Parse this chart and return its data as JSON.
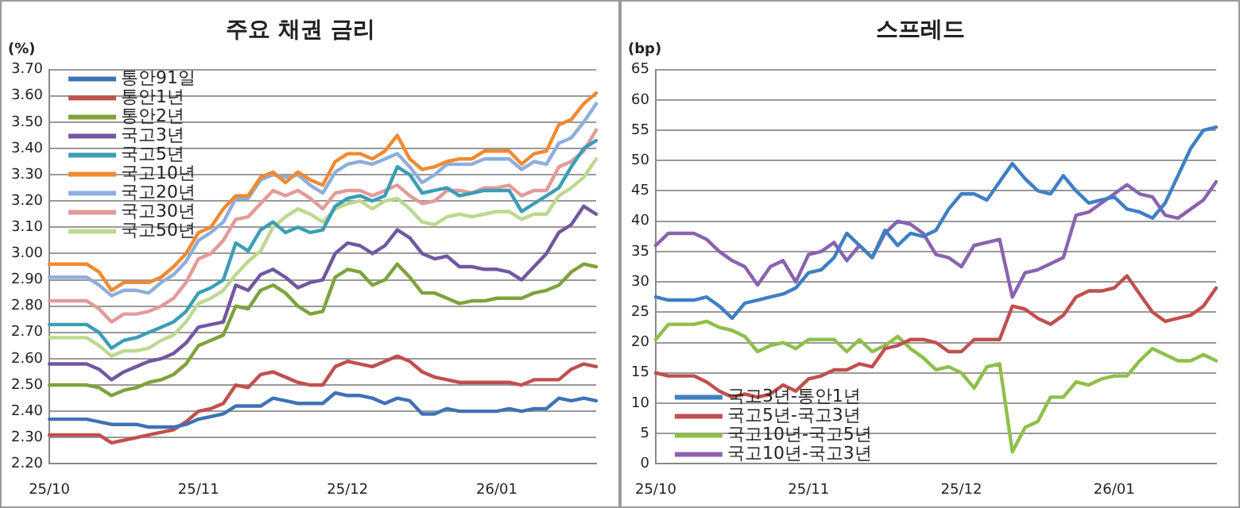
{
  "chart_data": [
    {
      "type": "line",
      "title": "주요 채권 금리",
      "ylabel": "(%)",
      "legend": "top left",
      "grid": "y",
      "marker": "none",
      "line_style": "solid",
      "categories": [
        "25/10",
        null,
        null,
        null,
        null,
        null,
        null,
        null,
        null,
        null,
        null,
        null,
        "25/11",
        null,
        null,
        null,
        null,
        null,
        null,
        null,
        null,
        null,
        null,
        null,
        "25/12",
        null,
        null,
        null,
        null,
        null,
        null,
        null,
        null,
        null,
        null,
        null,
        "26/01",
        null,
        null,
        null,
        null,
        null,
        null,
        null,
        null
      ],
      "ylim": [
        2.2,
        3.7
      ],
      "yticks": [
        {
          "value": 2.2,
          "label": "2.20"
        },
        {
          "value": 2.3,
          "label": "2.30"
        },
        {
          "value": 2.4,
          "label": "2.40"
        },
        {
          "value": 2.5,
          "label": "2.50"
        },
        {
          "value": 2.6,
          "label": "2.60"
        },
        {
          "value": 2.7,
          "label": "2.70"
        },
        {
          "value": 2.8,
          "label": "2.80"
        },
        {
          "value": 2.9,
          "label": "2.90"
        },
        {
          "value": 3.0,
          "label": "3.00"
        },
        {
          "value": 3.1,
          "label": "3.10"
        },
        {
          "value": 3.2,
          "label": "3.20"
        },
        {
          "value": 3.3,
          "label": "3.30"
        },
        {
          "value": 3.4,
          "label": "3.40"
        },
        {
          "value": 3.5,
          "label": "3.50"
        },
        {
          "value": 3.6,
          "label": "3.60"
        },
        {
          "value": 3.7,
          "label": "3.70"
        }
      ],
      "series": [
        {
          "name": "통안91일",
          "color": "#3f72b5",
          "values": [
            2.37,
            2.37,
            2.37,
            2.37,
            2.36,
            2.35,
            2.35,
            2.35,
            2.34,
            2.34,
            2.34,
            2.35,
            2.37,
            2.38,
            2.39,
            2.42,
            2.42,
            2.42,
            2.45,
            2.44,
            2.43,
            2.43,
            2.43,
            2.47,
            2.46,
            2.46,
            2.45,
            2.43,
            2.45,
            2.44,
            2.39,
            2.39,
            2.41,
            2.4,
            2.4,
            2.4,
            2.4,
            2.41,
            2.4,
            2.41,
            2.41,
            2.45,
            2.44,
            2.45,
            2.44
          ]
        },
        {
          "name": "통안1년",
          "color": "#c0504d",
          "values": [
            2.31,
            2.31,
            2.31,
            2.31,
            2.31,
            2.28,
            2.29,
            2.3,
            2.31,
            2.32,
            2.33,
            2.36,
            2.4,
            2.41,
            2.43,
            2.5,
            2.49,
            2.54,
            2.55,
            2.53,
            2.51,
            2.5,
            2.5,
            2.57,
            2.59,
            2.58,
            2.57,
            2.59,
            2.61,
            2.59,
            2.55,
            2.53,
            2.52,
            2.51,
            2.51,
            2.51,
            2.51,
            2.51,
            2.5,
            2.52,
            2.52,
            2.52,
            2.56,
            2.58,
            2.57
          ]
        },
        {
          "name": "통안2년",
          "color": "#7ea33a",
          "values": [
            2.5,
            2.5,
            2.5,
            2.5,
            2.49,
            2.46,
            2.48,
            2.49,
            2.51,
            2.52,
            2.54,
            2.58,
            2.65,
            2.67,
            2.69,
            2.8,
            2.79,
            2.86,
            2.88,
            2.85,
            2.8,
            2.77,
            2.78,
            2.91,
            2.94,
            2.93,
            2.88,
            2.9,
            2.96,
            2.91,
            2.85,
            2.85,
            2.83,
            2.81,
            2.82,
            2.82,
            2.83,
            2.83,
            2.83,
            2.85,
            2.86,
            2.88,
            2.93,
            2.96,
            2.95
          ]
        },
        {
          "name": "국고3년",
          "color": "#7058a0",
          "values": [
            2.58,
            2.58,
            2.58,
            2.58,
            2.56,
            2.52,
            2.55,
            2.57,
            2.59,
            2.6,
            2.62,
            2.66,
            2.72,
            2.73,
            2.74,
            2.88,
            2.86,
            2.92,
            2.94,
            2.91,
            2.87,
            2.89,
            2.9,
            3.0,
            3.04,
            3.03,
            3.0,
            3.03,
            3.09,
            3.06,
            3.0,
            2.98,
            2.99,
            2.95,
            2.95,
            2.94,
            2.94,
            2.93,
            2.9,
            2.95,
            3.0,
            3.08,
            3.11,
            3.18,
            3.15
          ]
        },
        {
          "name": "국고5년",
          "color": "#3a9eb5",
          "values": [
            2.73,
            2.73,
            2.73,
            2.73,
            2.7,
            2.64,
            2.67,
            2.68,
            2.7,
            2.72,
            2.74,
            2.78,
            2.85,
            2.87,
            2.9,
            3.04,
            3.01,
            3.09,
            3.12,
            3.08,
            3.1,
            3.08,
            3.09,
            3.18,
            3.21,
            3.22,
            3.2,
            3.22,
            3.33,
            3.3,
            3.23,
            3.24,
            3.25,
            3.22,
            3.23,
            3.24,
            3.24,
            3.24,
            3.16,
            3.19,
            3.22,
            3.25,
            3.33,
            3.4,
            3.43
          ]
        },
        {
          "name": "국고10년",
          "color": "#f08a30",
          "values": [
            2.96,
            2.96,
            2.96,
            2.96,
            2.93,
            2.86,
            2.89,
            2.89,
            2.89,
            2.91,
            2.95,
            3.0,
            3.08,
            3.1,
            3.17,
            3.22,
            3.22,
            3.29,
            3.31,
            3.27,
            3.31,
            3.28,
            3.26,
            3.35,
            3.38,
            3.38,
            3.36,
            3.39,
            3.45,
            3.36,
            3.32,
            3.33,
            3.35,
            3.36,
            3.36,
            3.39,
            3.39,
            3.39,
            3.34,
            3.38,
            3.39,
            3.49,
            3.51,
            3.57,
            3.61
          ]
        },
        {
          "name": "국고20년",
          "color": "#8eaedb",
          "values": [
            2.91,
            2.91,
            2.91,
            2.91,
            2.88,
            2.84,
            2.86,
            2.86,
            2.85,
            2.89,
            2.92,
            2.97,
            3.05,
            3.08,
            3.12,
            3.21,
            3.21,
            3.28,
            3.3,
            3.29,
            3.3,
            3.26,
            3.23,
            3.31,
            3.34,
            3.35,
            3.34,
            3.36,
            3.38,
            3.33,
            3.27,
            3.3,
            3.34,
            3.34,
            3.34,
            3.36,
            3.36,
            3.36,
            3.32,
            3.35,
            3.34,
            3.42,
            3.44,
            3.5,
            3.57
          ]
        },
        {
          "name": "국고30년",
          "color": "#e39a98",
          "values": [
            2.82,
            2.82,
            2.82,
            2.82,
            2.79,
            2.74,
            2.77,
            2.77,
            2.78,
            2.8,
            2.83,
            2.89,
            2.98,
            3.0,
            3.05,
            3.13,
            3.14,
            3.19,
            3.24,
            3.22,
            3.24,
            3.21,
            3.17,
            3.23,
            3.24,
            3.24,
            3.22,
            3.24,
            3.26,
            3.22,
            3.19,
            3.2,
            3.24,
            3.24,
            3.23,
            3.25,
            3.25,
            3.26,
            3.22,
            3.24,
            3.24,
            3.33,
            3.35,
            3.39,
            3.47
          ]
        },
        {
          "name": "국고50년",
          "color": "#bcd98f",
          "values": [
            2.68,
            2.68,
            2.68,
            2.68,
            2.65,
            2.61,
            2.63,
            2.63,
            2.64,
            2.67,
            2.69,
            2.74,
            2.81,
            2.83,
            2.86,
            2.92,
            2.97,
            3.01,
            3.1,
            3.14,
            3.17,
            3.15,
            3.12,
            3.17,
            3.19,
            3.2,
            3.17,
            3.2,
            3.21,
            3.17,
            3.12,
            3.11,
            3.14,
            3.15,
            3.14,
            3.15,
            3.16,
            3.16,
            3.13,
            3.15,
            3.15,
            3.22,
            3.25,
            3.29,
            3.36
          ]
        }
      ]
    },
    {
      "type": "line",
      "title": "스프레드",
      "ylabel": "(bp)",
      "legend": "bottom left",
      "grid": "y",
      "marker": "none",
      "line_style": "solid",
      "categories": [
        "25/10",
        null,
        null,
        null,
        null,
        null,
        null,
        null,
        null,
        null,
        null,
        null,
        "25/11",
        null,
        null,
        null,
        null,
        null,
        null,
        null,
        null,
        null,
        null,
        null,
        "25/12",
        null,
        null,
        null,
        null,
        null,
        null,
        null,
        null,
        null,
        null,
        null,
        "26/01",
        null,
        null,
        null,
        null,
        null,
        null,
        null,
        null
      ],
      "ylim": [
        0,
        65
      ],
      "yticks": [
        0,
        5,
        10,
        15,
        20,
        25,
        30,
        35,
        40,
        45,
        50,
        55,
        60,
        65
      ],
      "series": [
        {
          "name": "국고3년-통안1년",
          "color": "#3f7fc4",
          "values": [
            27.5,
            27,
            27,
            27,
            27.5,
            26,
            24,
            26.5,
            27,
            27.5,
            28,
            29,
            31.5,
            32,
            34,
            38,
            36,
            34,
            38.5,
            36,
            38,
            37.5,
            38.5,
            42,
            44.5,
            44.5,
            43.5,
            46.5,
            49.5,
            47,
            45,
            44.5,
            47.5,
            45,
            43,
            43.5,
            44,
            42,
            41.5,
            40.5,
            43,
            47.5,
            52,
            55,
            55.5
          ]
        },
        {
          "name": "국고5년-국고3년",
          "color": "#c0504d",
          "values": [
            15,
            14.5,
            14.5,
            14.5,
            13.5,
            12,
            11,
            11.5,
            11,
            11.5,
            13,
            12,
            14,
            14.5,
            15.5,
            15.5,
            16.5,
            16,
            19,
            19.5,
            20.5,
            20.5,
            20,
            18.5,
            18.5,
            20.5,
            20.5,
            20.5,
            26,
            25.5,
            24,
            23,
            24.5,
            27.5,
            28.5,
            28.5,
            29,
            31,
            28,
            25,
            23.5,
            24,
            24.5,
            26,
            29
          ]
        },
        {
          "name": "국고10년-국고5년",
          "color": "#8fbf4a",
          "values": [
            20.5,
            23,
            23,
            23,
            23.5,
            22.5,
            22,
            21,
            18.5,
            19.5,
            20,
            19,
            20.5,
            20.5,
            20.5,
            18.5,
            20.5,
            18.5,
            19.5,
            21,
            19,
            17.5,
            15.5,
            16,
            15,
            12.5,
            16,
            16.5,
            2,
            6,
            7,
            11,
            11,
            13.5,
            13,
            14,
            14.5,
            14.5,
            17,
            19,
            18,
            17,
            17,
            18,
            17
          ]
        },
        {
          "name": "국고10년-국고3년",
          "color": "#8a63b0",
          "values": [
            36,
            38,
            38,
            38,
            37,
            35,
            33.5,
            32.5,
            29.5,
            32.5,
            33.5,
            30,
            34.5,
            35,
            36.5,
            33.5,
            36,
            34,
            38,
            40,
            39.5,
            38,
            34.5,
            34,
            32.5,
            36,
            36.5,
            37,
            27.5,
            31.5,
            32,
            33,
            34,
            41,
            41.5,
            43,
            44.5,
            46,
            44.5,
            44,
            41,
            40.5,
            42,
            43.5,
            46.5
          ]
        }
      ]
    }
  ]
}
